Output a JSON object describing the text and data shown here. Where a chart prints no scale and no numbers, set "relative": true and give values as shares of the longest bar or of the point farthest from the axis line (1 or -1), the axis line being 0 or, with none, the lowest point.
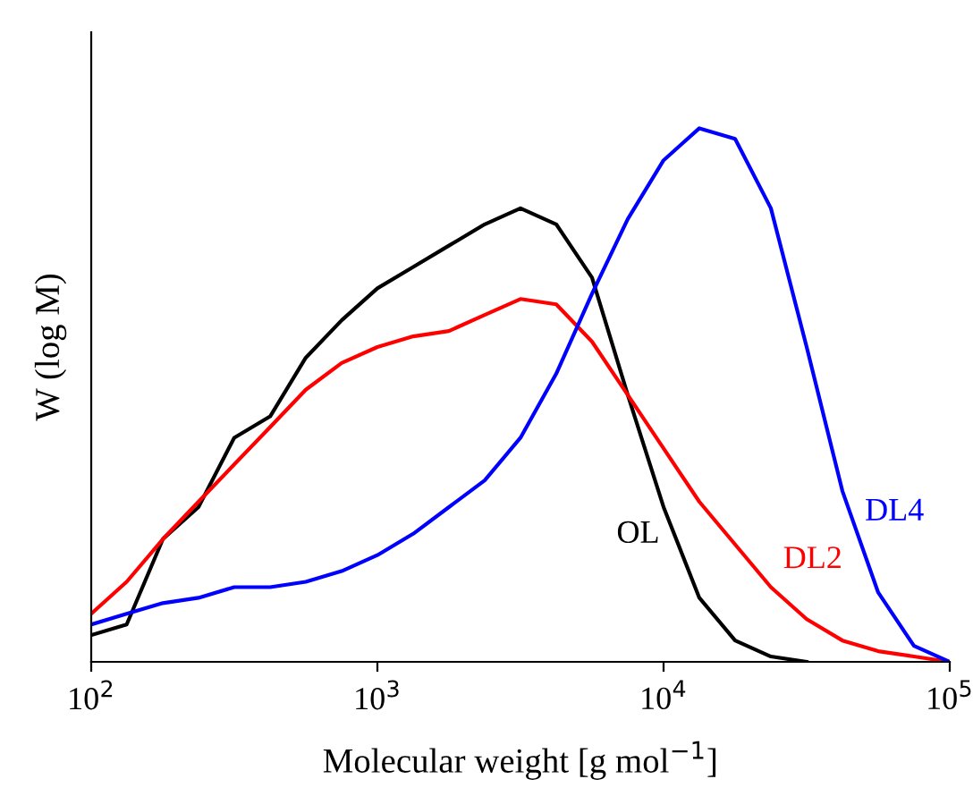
{
  "chart_data": {
    "type": "line",
    "relative": true,
    "log": "x",
    "xlabel": "Molecular weight [g mol$^{−1}$]",
    "ylabel": "W (log M)",
    "x": [
      100,
      133,
      178,
      237,
      316,
      422,
      562,
      750,
      1000,
      1334,
      1778,
      2371,
      3162,
      4217,
      5623,
      7499,
      10000,
      13335,
      17783,
      23714,
      31623,
      42170,
      56234,
      74989,
      100000
    ],
    "xlim": [
      100,
      100000
    ],
    "xticks": [
      {
        "value": 100,
        "label": "10$^{2}$"
      },
      {
        "value": 1000,
        "label": "10$^{3}$"
      },
      {
        "value": 10000,
        "label": "10$^{4}$"
      },
      {
        "value": 100000,
        "label": "10$^{5}$"
      }
    ],
    "tick_labels": "x",
    "grid": false,
    "legend": false,
    "series": [
      {
        "name": "OL",
        "color": "#000000",
        "values": [
          0.05,
          0.07,
          0.23,
          0.29,
          0.42,
          0.46,
          0.57,
          0.64,
          0.7,
          0.74,
          0.78,
          0.82,
          0.85,
          0.82,
          0.72,
          0.5,
          0.29,
          0.12,
          0.04,
          0.01,
          0.0,
          null,
          null,
          null,
          null
        ]
      },
      {
        "name": "DL2",
        "color": "#ff0000",
        "values": [
          0.09,
          0.15,
          0.23,
          0.3,
          0.37,
          0.44,
          0.51,
          0.56,
          0.59,
          0.61,
          0.62,
          0.65,
          0.68,
          0.67,
          0.6,
          0.5,
          0.4,
          0.3,
          0.22,
          0.14,
          0.08,
          0.04,
          0.02,
          0.01,
          0.0
        ]
      },
      {
        "name": "DL4",
        "color": "#0000ff",
        "values": [
          0.07,
          0.09,
          0.11,
          0.12,
          0.14,
          0.14,
          0.15,
          0.17,
          0.2,
          0.24,
          0.29,
          0.34,
          0.42,
          0.54,
          0.69,
          0.83,
          0.94,
          1.0,
          0.98,
          0.85,
          0.59,
          0.32,
          0.13,
          0.03,
          0.0
        ]
      }
    ]
  }
}
